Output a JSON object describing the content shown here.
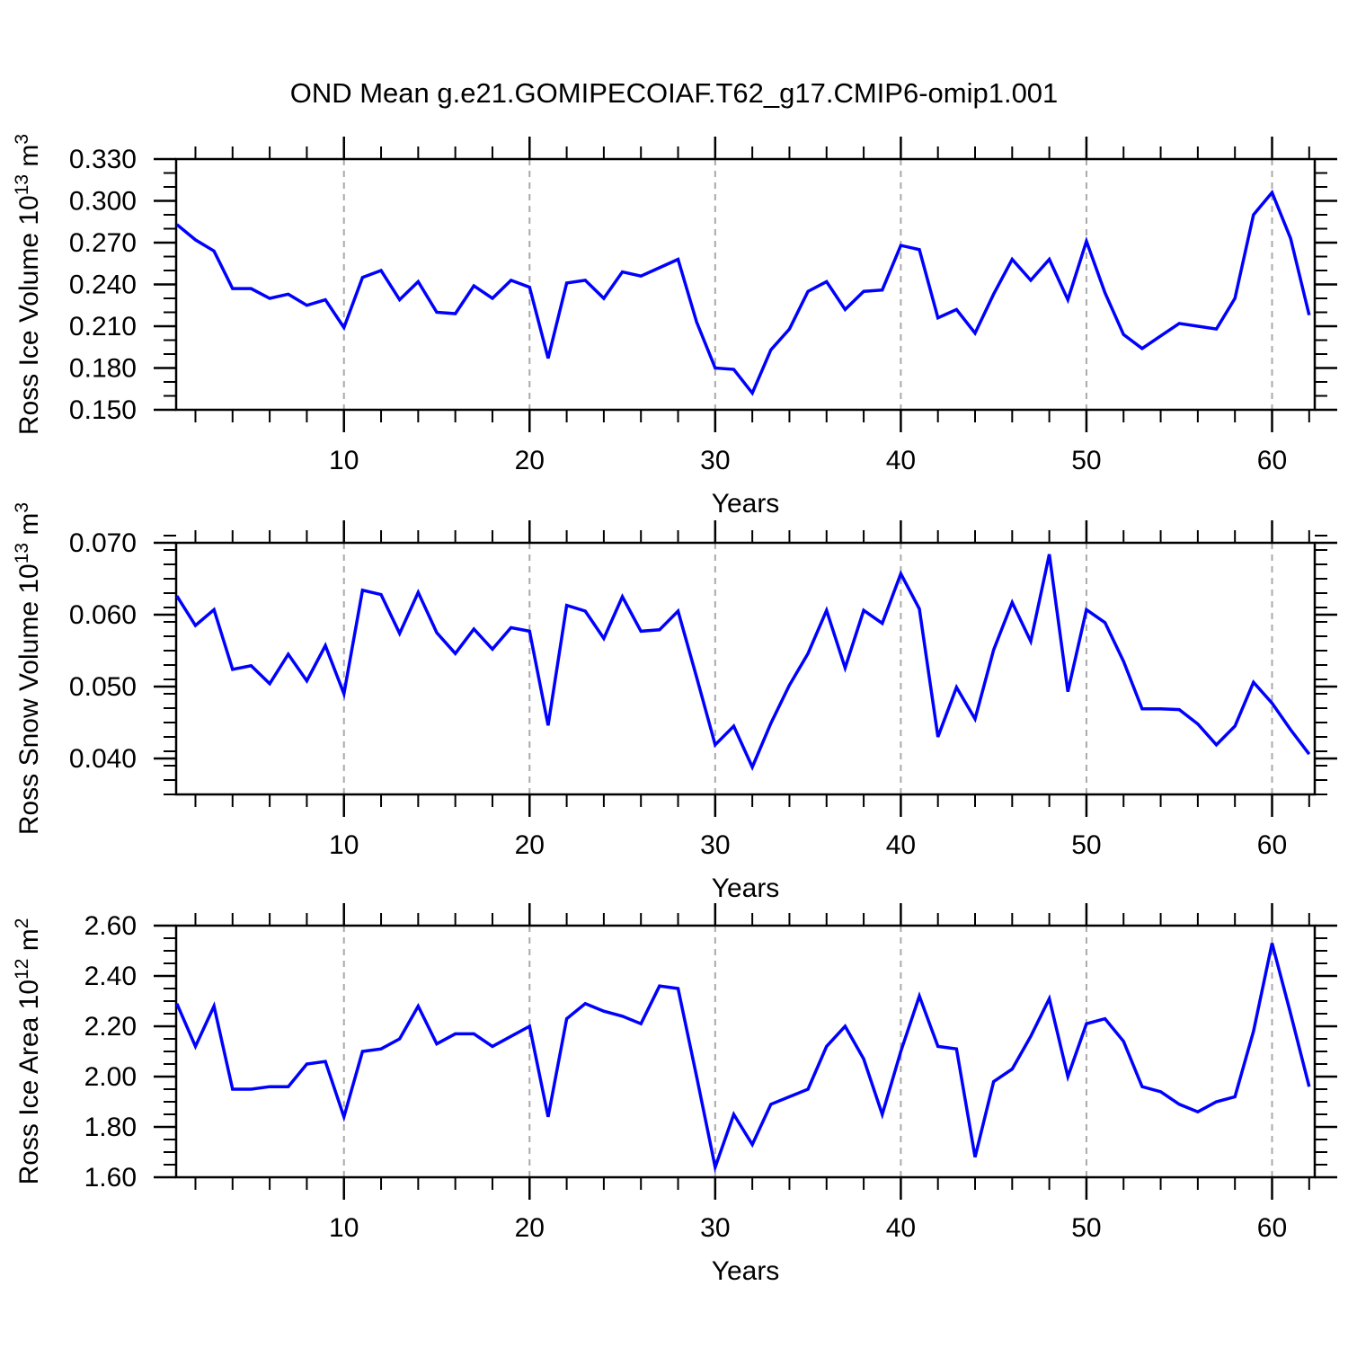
{
  "title": "OND Mean g.e21.GOMIPECOIAF.T62_g17.CMIP6-omip1.001",
  "colors": {
    "line": "#0000ff",
    "grid": "#a9a9a9",
    "frame": "#000000",
    "text": "#000000",
    "background": "#ffffff"
  },
  "x_axis": {
    "label": "Years",
    "start_year": 1,
    "end_year": 62,
    "step": 1,
    "major_ticks": [
      10,
      20,
      30,
      40,
      50,
      60
    ],
    "minor_tick_step": 2
  },
  "chart_data": [
    {
      "type": "line",
      "id": "ross-ice-volume",
      "ylabel_text": "Ross Ice Volume 10^13 m^3",
      "ylabel_parts": [
        {
          "t": "Ross Ice Volume 10",
          "sup": false
        },
        {
          "t": "13",
          "sup": true
        },
        {
          "t": " m",
          "sup": false
        },
        {
          "t": "3",
          "sup": true
        }
      ],
      "ylim": [
        0.15,
        0.33
      ],
      "ytick_values": [
        0.15,
        0.18,
        0.21,
        0.24,
        0.27,
        0.3,
        0.33
      ],
      "ytick_labels": [
        "0.150",
        "0.180",
        "0.210",
        "0.240",
        "0.270",
        "0.300",
        "0.330"
      ],
      "yminor_step": 0.01,
      "grid": "dashed-vertical-at-decades",
      "legend": "none",
      "values": [
        0.283,
        0.272,
        0.264,
        0.237,
        0.237,
        0.23,
        0.233,
        0.225,
        0.229,
        0.209,
        0.245,
        0.25,
        0.229,
        0.242,
        0.22,
        0.219,
        0.239,
        0.23,
        0.243,
        0.238,
        0.187,
        0.241,
        0.243,
        0.23,
        0.249,
        0.246,
        0.252,
        0.258,
        0.213,
        0.18,
        0.179,
        0.162,
        0.193,
        0.208,
        0.235,
        0.242,
        0.222,
        0.235,
        0.236,
        0.268,
        0.265,
        0.216,
        0.222,
        0.205,
        0.233,
        0.258,
        0.243,
        0.258,
        0.229,
        0.271,
        0.234,
        0.204,
        0.194,
        0.203,
        0.212,
        0.21,
        0.208,
        0.23,
        0.29,
        0.306,
        0.273,
        0.218
      ]
    },
    {
      "type": "line",
      "id": "ross-snow-volume",
      "ylabel_text": "Ross Snow Volume 10^13 m^3",
      "ylabel_parts": [
        {
          "t": "Ross Snow Volume 10",
          "sup": false
        },
        {
          "t": "13",
          "sup": true
        },
        {
          "t": " m",
          "sup": false
        },
        {
          "t": "3",
          "sup": true
        }
      ],
      "ylim": [
        0.035,
        0.07
      ],
      "ytick_values": [
        0.04,
        0.05,
        0.06,
        0.07
      ],
      "ytick_labels": [
        "0.040",
        "0.050",
        "0.060",
        "0.070"
      ],
      "yminor_step": 0.002,
      "grid": "dashed-vertical-at-decades",
      "legend": "none",
      "values": [
        0.0626,
        0.0585,
        0.0607,
        0.0524,
        0.0529,
        0.0504,
        0.0545,
        0.0508,
        0.0557,
        0.049,
        0.0634,
        0.0628,
        0.0574,
        0.0631,
        0.0575,
        0.0546,
        0.058,
        0.0552,
        0.0582,
        0.0577,
        0.0446,
        0.0613,
        0.0605,
        0.0567,
        0.0625,
        0.0577,
        0.0579,
        0.0605,
        0.0513,
        0.0419,
        0.0445,
        0.0388,
        0.0449,
        0.0502,
        0.0546,
        0.0606,
        0.0526,
        0.0606,
        0.0588,
        0.0657,
        0.0608,
        0.043,
        0.0499,
        0.0455,
        0.0551,
        0.0617,
        0.0563,
        0.0684,
        0.0493,
        0.0607,
        0.0589,
        0.0535,
        0.0469,
        0.0469,
        0.0468,
        0.0448,
        0.0419,
        0.0445,
        0.0506,
        0.0477,
        0.044,
        0.0406
      ]
    },
    {
      "type": "line",
      "id": "ross-ice-area",
      "ylabel_text": "Ross Ice Area 10^12 m^2",
      "ylabel_parts": [
        {
          "t": "Ross Ice Area 10",
          "sup": false
        },
        {
          "t": "12",
          "sup": true
        },
        {
          "t": " m",
          "sup": false
        },
        {
          "t": "2",
          "sup": true
        }
      ],
      "ylim": [
        1.6,
        2.6
      ],
      "ytick_values": [
        1.6,
        1.8,
        2.0,
        2.2,
        2.4,
        2.6
      ],
      "ytick_labels": [
        "1.60",
        "1.80",
        "2.00",
        "2.20",
        "2.40",
        "2.60"
      ],
      "yminor_step": 0.05,
      "grid": "dashed-vertical-at-decades",
      "legend": "none",
      "values": [
        2.29,
        2.12,
        2.28,
        1.95,
        1.95,
        1.96,
        1.96,
        2.05,
        2.06,
        1.84,
        2.1,
        2.11,
        2.15,
        2.28,
        2.13,
        2.17,
        2.17,
        2.12,
        2.16,
        2.2,
        1.84,
        2.23,
        2.29,
        2.26,
        2.24,
        2.21,
        2.36,
        2.35,
        2.0,
        1.64,
        1.85,
        1.73,
        1.89,
        1.92,
        1.95,
        2.12,
        2.2,
        2.07,
        1.85,
        2.1,
        2.32,
        2.12,
        2.11,
        1.68,
        1.98,
        2.03,
        2.16,
        2.31,
        2.0,
        2.21,
        2.23,
        2.14,
        1.96,
        1.94,
        1.89,
        1.86,
        1.9,
        1.92,
        2.18,
        2.53,
        2.25,
        1.96
      ]
    }
  ]
}
